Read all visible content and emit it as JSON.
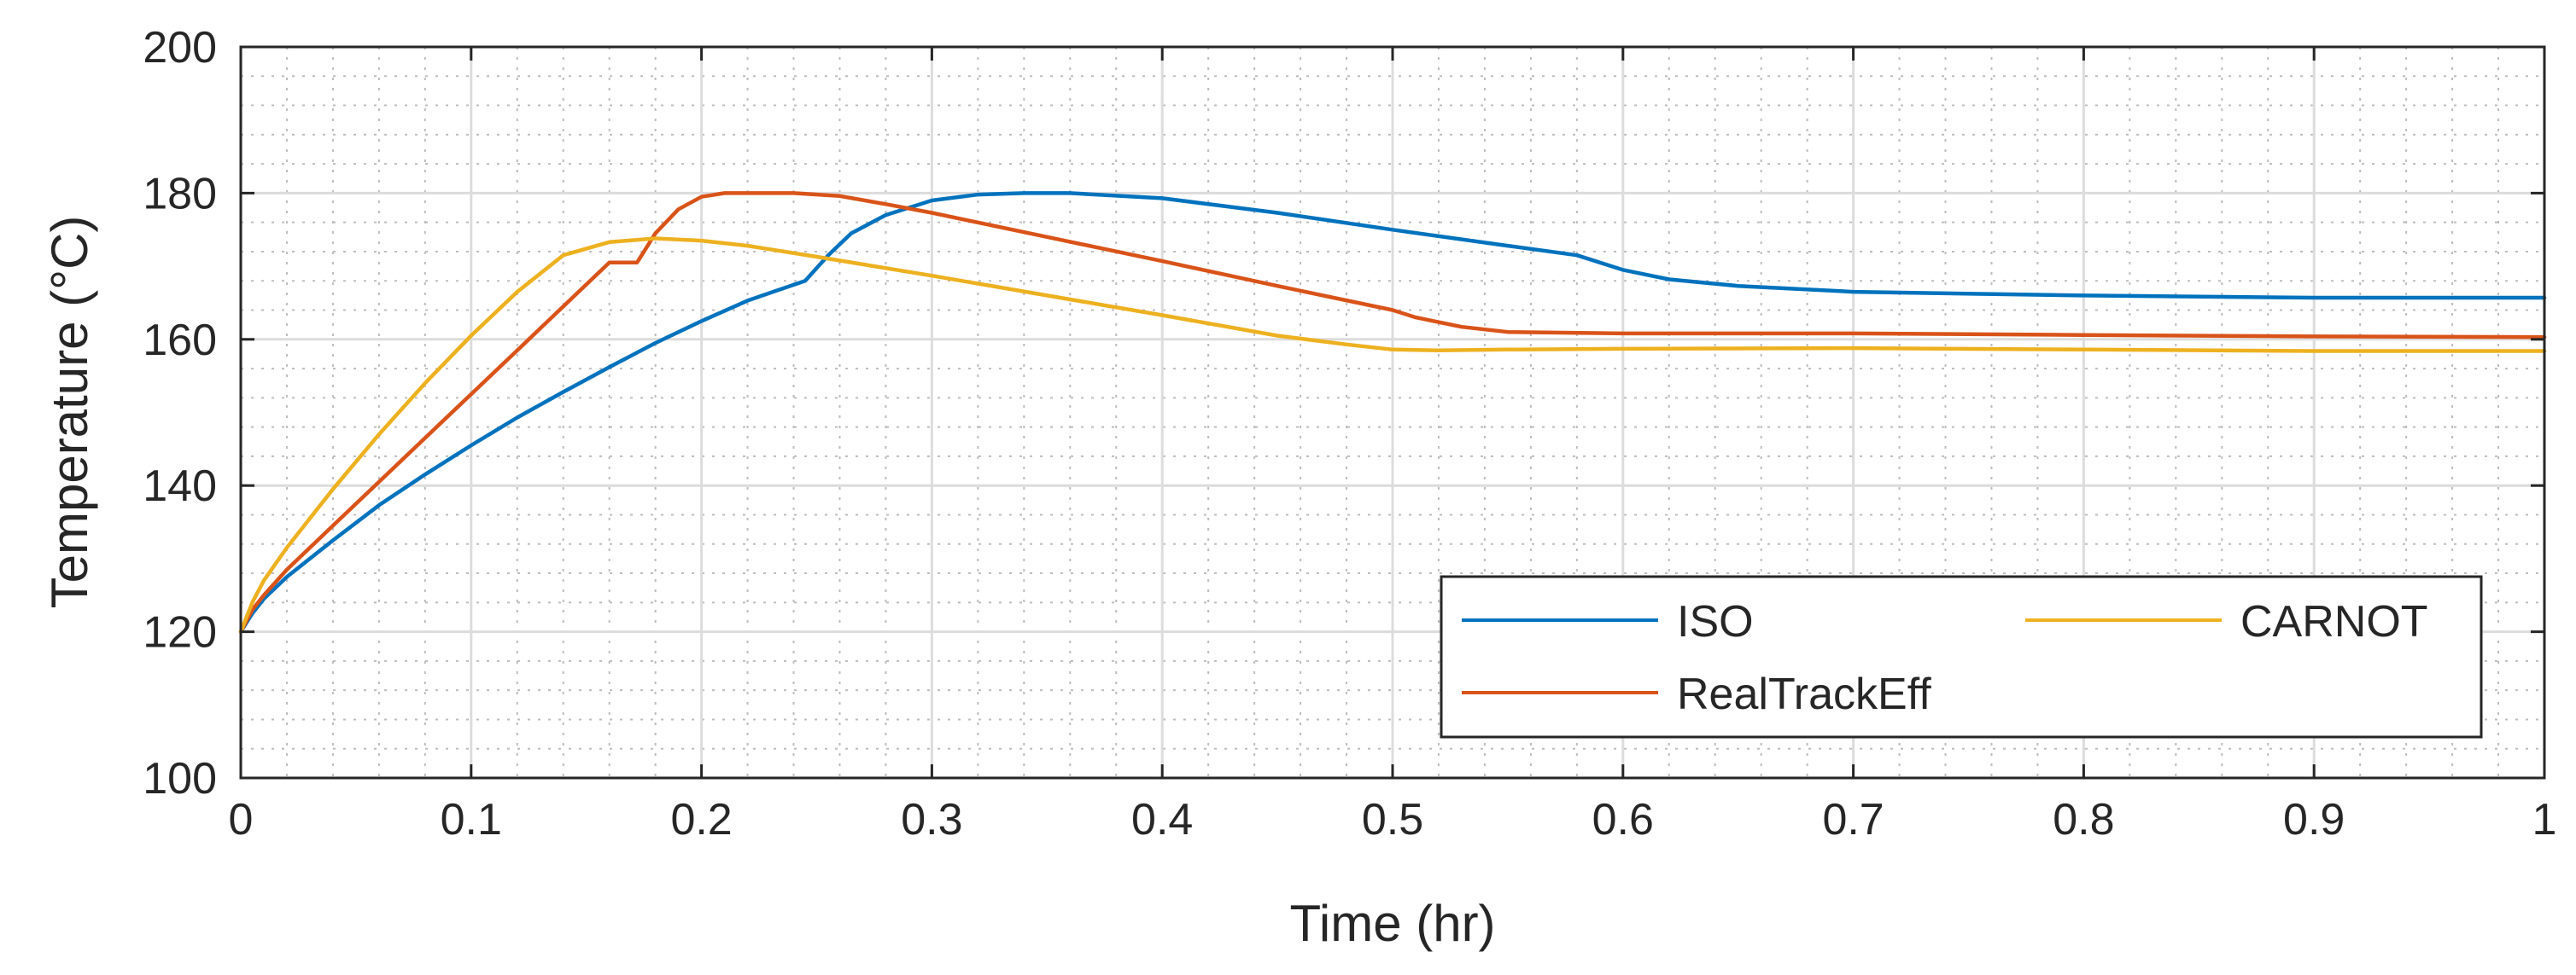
{
  "chart_data": {
    "type": "line",
    "title": "",
    "xlabel": "Time (hr)",
    "ylabel": "Temperature (°C)",
    "xlim": [
      0,
      1
    ],
    "ylim": [
      100,
      200
    ],
    "xticks": [
      0,
      0.1,
      0.2,
      0.3,
      0.4,
      0.5,
      0.6,
      0.7,
      0.8,
      0.9,
      1
    ],
    "xtick_labels": [
      "0",
      "0.1",
      "0.2",
      "0.3",
      "0.4",
      "0.5",
      "0.6",
      "0.7",
      "0.8",
      "0.9",
      "1"
    ],
    "yticks": [
      100,
      120,
      140,
      160,
      180,
      200
    ],
    "ytick_labels": [
      "100",
      "120",
      "140",
      "160",
      "180",
      "200"
    ],
    "grid": true,
    "minor_grid": true,
    "legend_location": "bottom-right",
    "series": [
      {
        "name": "ISO",
        "color": "#0072BD",
        "x": [
          0,
          0.005,
          0.01,
          0.02,
          0.04,
          0.06,
          0.08,
          0.1,
          0.12,
          0.14,
          0.16,
          0.18,
          0.2,
          0.22,
          0.245,
          0.255,
          0.265,
          0.28,
          0.3,
          0.32,
          0.34,
          0.36,
          0.4,
          0.45,
          0.5,
          0.55,
          0.58,
          0.6,
          0.62,
          0.65,
          0.7,
          0.8,
          0.9,
          1.0
        ],
        "y": [
          120,
          122.5,
          124.5,
          127.5,
          132.5,
          137.3,
          141.5,
          145.5,
          149.3,
          152.8,
          156.2,
          159.5,
          162.5,
          165.3,
          168,
          171.5,
          174.5,
          177,
          179,
          179.8,
          180,
          180,
          179.3,
          177.3,
          175,
          172.8,
          171.5,
          169.5,
          168.2,
          167.3,
          166.5,
          166,
          165.7,
          165.7
        ]
      },
      {
        "name": "RealTrackEff",
        "color": "#D95319",
        "x": [
          0,
          0.005,
          0.01,
          0.02,
          0.04,
          0.06,
          0.08,
          0.1,
          0.12,
          0.14,
          0.16,
          0.172,
          0.18,
          0.19,
          0.2,
          0.21,
          0.22,
          0.24,
          0.26,
          0.28,
          0.3,
          0.35,
          0.4,
          0.45,
          0.5,
          0.51,
          0.53,
          0.55,
          0.6,
          0.7,
          0.8,
          0.9,
          1.0
        ],
        "y": [
          120,
          123,
          125,
          128.5,
          134.5,
          140.5,
          146.5,
          152.5,
          158.5,
          164.5,
          170.5,
          170.5,
          174.5,
          177.8,
          179.5,
          180,
          180,
          180,
          179.6,
          178.5,
          177.3,
          174,
          170.7,
          167.3,
          164,
          163,
          161.7,
          161,
          160.8,
          160.8,
          160.6,
          160.4,
          160.3
        ]
      },
      {
        "name": "CARNOT",
        "color": "#EDB120",
        "x": [
          0,
          0.005,
          0.01,
          0.02,
          0.04,
          0.06,
          0.08,
          0.1,
          0.12,
          0.14,
          0.16,
          0.18,
          0.2,
          0.22,
          0.25,
          0.3,
          0.35,
          0.4,
          0.45,
          0.48,
          0.5,
          0.52,
          0.55,
          0.6,
          0.7,
          0.8,
          0.9,
          1.0
        ],
        "y": [
          120,
          124,
          127,
          131.5,
          139.5,
          147,
          154,
          160.5,
          166.5,
          171.5,
          173.3,
          173.8,
          173.5,
          172.8,
          171.3,
          168.7,
          166,
          163.3,
          160.5,
          159.3,
          158.6,
          158.5,
          158.6,
          158.7,
          158.8,
          158.6,
          158.4,
          158.4
        ]
      }
    ]
  }
}
